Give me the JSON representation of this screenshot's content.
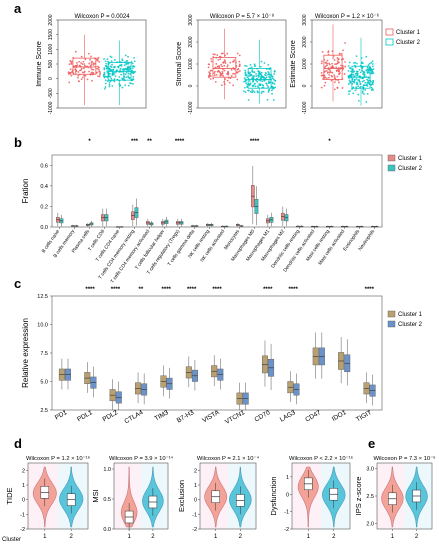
{
  "colors": {
    "c1": "#f08080",
    "c2": "#1fd3d0",
    "c1_box": "#f4a6a0",
    "c2_box": "#34c6c6",
    "c1_dot": "#ef5a5a",
    "c2_dot": "#00c5c5"
  },
  "panel_a": {
    "letter": "a",
    "legend": [
      "Cluster 1",
      "Cluster 2"
    ],
    "plots": [
      {
        "stat": "Wilcoxon P = 0.0024",
        "ylabel": "Immune Score",
        "ticks": [
          "2000",
          "1500",
          "1000",
          "500",
          "0",
          "-500",
          "-1000"
        ]
      },
      {
        "stat": "Wilcoxon P = 5.7 × 10⁻⁸",
        "ylabel": "Stromal Score",
        "ticks": [
          "3000",
          "2000",
          "1000",
          "0",
          "-1000"
        ]
      },
      {
        "stat": "Wilcoxon P = 1.2 × 10⁻⁶",
        "ylabel": "Estimate Score",
        "ticks": [
          "3000",
          "2000",
          "1000",
          "0",
          "-1000"
        ]
      }
    ]
  },
  "panel_b": {
    "letter": "b",
    "ylabel": "Fration",
    "ticks": [
      "0.6",
      "0.4",
      "0.2",
      "0.0"
    ],
    "legend": [
      "Cluster 1",
      "Cluster 2"
    ]
  },
  "panel_c": {
    "letter": "c",
    "ylabel": "Relative expression",
    "ticks": [
      "12.5",
      "10.0",
      "7.5",
      "5.0",
      "2.5"
    ],
    "legend": [
      "Cluster 1",
      "Cluster 2"
    ]
  },
  "panel_d": {
    "letter": "d",
    "cluster_label": "Cluster",
    "plots": [
      {
        "stat": "Wilcoxon P = 1.2 × 10⁻¹⁶",
        "ylabel": "TIDE",
        "ticks": [
          "2",
          "1",
          "0",
          "-1",
          "-2"
        ]
      },
      {
        "stat": "Wilcoxon P = 3.9 × 10⁻¹⁴",
        "ylabel": "MSI",
        "ticks": [
          "1.0",
          "0.5",
          "0.0"
        ]
      },
      {
        "stat": "Wilcoxon P = 2.1 × 10⁻⁴",
        "ylabel": "Exclusion",
        "ticks": [
          "2",
          "1",
          "0",
          "-1",
          "-2"
        ]
      },
      {
        "stat": "Wilcoxon P < 2.2 × 10⁻¹⁶",
        "ylabel": "Dysfunction",
        "ticks": [
          "1",
          "0",
          "-1",
          "-2"
        ]
      }
    ]
  },
  "panel_e": {
    "letter": "e",
    "stat": "Wilcoxon P = 7.3 × 10⁻⁶",
    "ylabel": "IPS z-score",
    "ticks": [
      "3.0",
      "2.5",
      "2.0"
    ]
  },
  "chart_data": [
    {
      "type": "box",
      "panel": "a",
      "x_categories": [
        "Cluster 1",
        "Cluster 2"
      ],
      "subplots": [
        {
          "ylabel": "Immune Score",
          "ylim": [
            -1000,
            2000
          ],
          "boxes": [
            {
              "name": "Cluster 1",
              "min": -900,
              "q1": 150,
              "median": 400,
              "q3": 700,
              "max": 1500
            },
            {
              "name": "Cluster 2",
              "min": -900,
              "q1": -50,
              "median": 250,
              "q3": 550,
              "max": 1300
            }
          ]
        },
        {
          "ylabel": "Stromal Score",
          "ylim": [
            -1000,
            3000
          ],
          "boxes": [
            {
              "name": "Cluster 1",
              "min": -600,
              "q1": 400,
              "median": 800,
              "q3": 1300,
              "max": 2600
            },
            {
              "name": "Cluster 2",
              "min": -800,
              "q1": -100,
              "median": 300,
              "q3": 800,
              "max": 2100
            }
          ]
        },
        {
          "ylabel": "Estimate Score",
          "ylim": [
            -1000,
            3000
          ],
          "boxes": [
            {
              "name": "Cluster 1",
              "min": -700,
              "q1": 300,
              "median": 800,
              "q3": 1400,
              "max": 2800
            },
            {
              "name": "Cluster 2",
              "min": -900,
              "q1": -100,
              "median": 400,
              "q3": 900,
              "max": 2200
            }
          ]
        }
      ]
    },
    {
      "type": "box",
      "panel": "b",
      "ylim": [
        0,
        0.7
      ],
      "series": [
        {
          "name": "Cluster 1",
          "medians": [
            0.07,
            0.01,
            0.02,
            0.09,
            0.0,
            0.11,
            0.04,
            0.04,
            0.04,
            0.01,
            0.02,
            0.005,
            0.02,
            0.3,
            0.06,
            0.1,
            0.005,
            0.003,
            0.003,
            0.003,
            0.003,
            0.003
          ]
        },
        {
          "name": "Cluster 2",
          "medians": [
            0.06,
            0.01,
            0.03,
            0.09,
            0.0,
            0.14,
            0.03,
            0.05,
            0.04,
            0.01,
            0.02,
            0.005,
            0.01,
            0.2,
            0.07,
            0.09,
            0.005,
            0.003,
            0.003,
            0.003,
            0.003,
            0.003
          ]
        }
      ],
      "categories": [
        "B cells naive",
        "B cells memory",
        "Plasma cells",
        "T cells CD8",
        "T cells CD4 naive",
        "T cells CD4 memory resting",
        "T cells CD4 memory activated",
        "T cells follicular helper",
        "T cells regulatory (Tregs)",
        "T cells gamma delta",
        "NK cells resting",
        "NK cells activated",
        "Monocytes",
        "Macrophages M0",
        "Macrophages M1",
        "Macrophages M2",
        "Dendritic cells resting",
        "Dendritic cells activated",
        "Mast cells resting",
        "Mast cells activated",
        "Eosinophils",
        "Neutrophils"
      ],
      "significance": [
        "",
        "",
        "*",
        "",
        "",
        "***",
        "**",
        "",
        "****",
        "",
        "",
        "",
        "",
        "****",
        "",
        "",
        "",
        "",
        "*",
        "",
        "",
        ""
      ]
    },
    {
      "type": "box",
      "panel": "c",
      "ylim": [
        2.5,
        12.5
      ],
      "categories": [
        "PD1",
        "PDL1",
        "PDL2",
        "CTLA4",
        "TIM3",
        "B7-H3",
        "VISTA",
        "VTCN1",
        "CD70",
        "LAG3",
        "CD47",
        "IDO1",
        "TIGIT"
      ],
      "significance": [
        "",
        "****",
        "****",
        "**",
        "****",
        "****",
        "****",
        "",
        "****",
        "****",
        "",
        "",
        "****"
      ],
      "series": [
        {
          "name": "Cluster 1",
          "medians": [
            5.6,
            5.3,
            3.8,
            4.4,
            5.0,
            5.8,
            5.9,
            3.5,
            6.5,
            4.5,
            7.2,
            6.8,
            4.4
          ]
        },
        {
          "name": "Cluster 2",
          "medians": [
            5.6,
            4.9,
            3.6,
            4.3,
            4.8,
            5.5,
            5.6,
            3.5,
            6.2,
            4.3,
            7.2,
            6.6,
            4.2
          ]
        }
      ]
    },
    {
      "type": "violin",
      "panel": "d",
      "x_categories": [
        "1",
        "2"
      ],
      "subplots": [
        {
          "ylabel": "TIDE",
          "ylim": [
            -2,
            2.5
          ],
          "medians": [
            0.5,
            0.0
          ]
        },
        {
          "ylabel": "MSI",
          "ylim": [
            0,
            1.1
          ],
          "medians": [
            0.2,
            0.45
          ]
        },
        {
          "ylabel": "Exclusion",
          "ylim": [
            -2,
            2.5
          ],
          "medians": [
            0.2,
            -0.05
          ]
        },
        {
          "ylabel": "Dysfunction",
          "ylim": [
            -2,
            1.8
          ],
          "medians": [
            0.6,
            0.0
          ]
        }
      ]
    },
    {
      "type": "violin",
      "panel": "e",
      "x_categories": [
        "1",
        "2"
      ],
      "ylabel": "IPS z-score",
      "ylim": [
        1.9,
        3.1
      ],
      "medians": [
        2.45,
        2.5
      ]
    }
  ]
}
